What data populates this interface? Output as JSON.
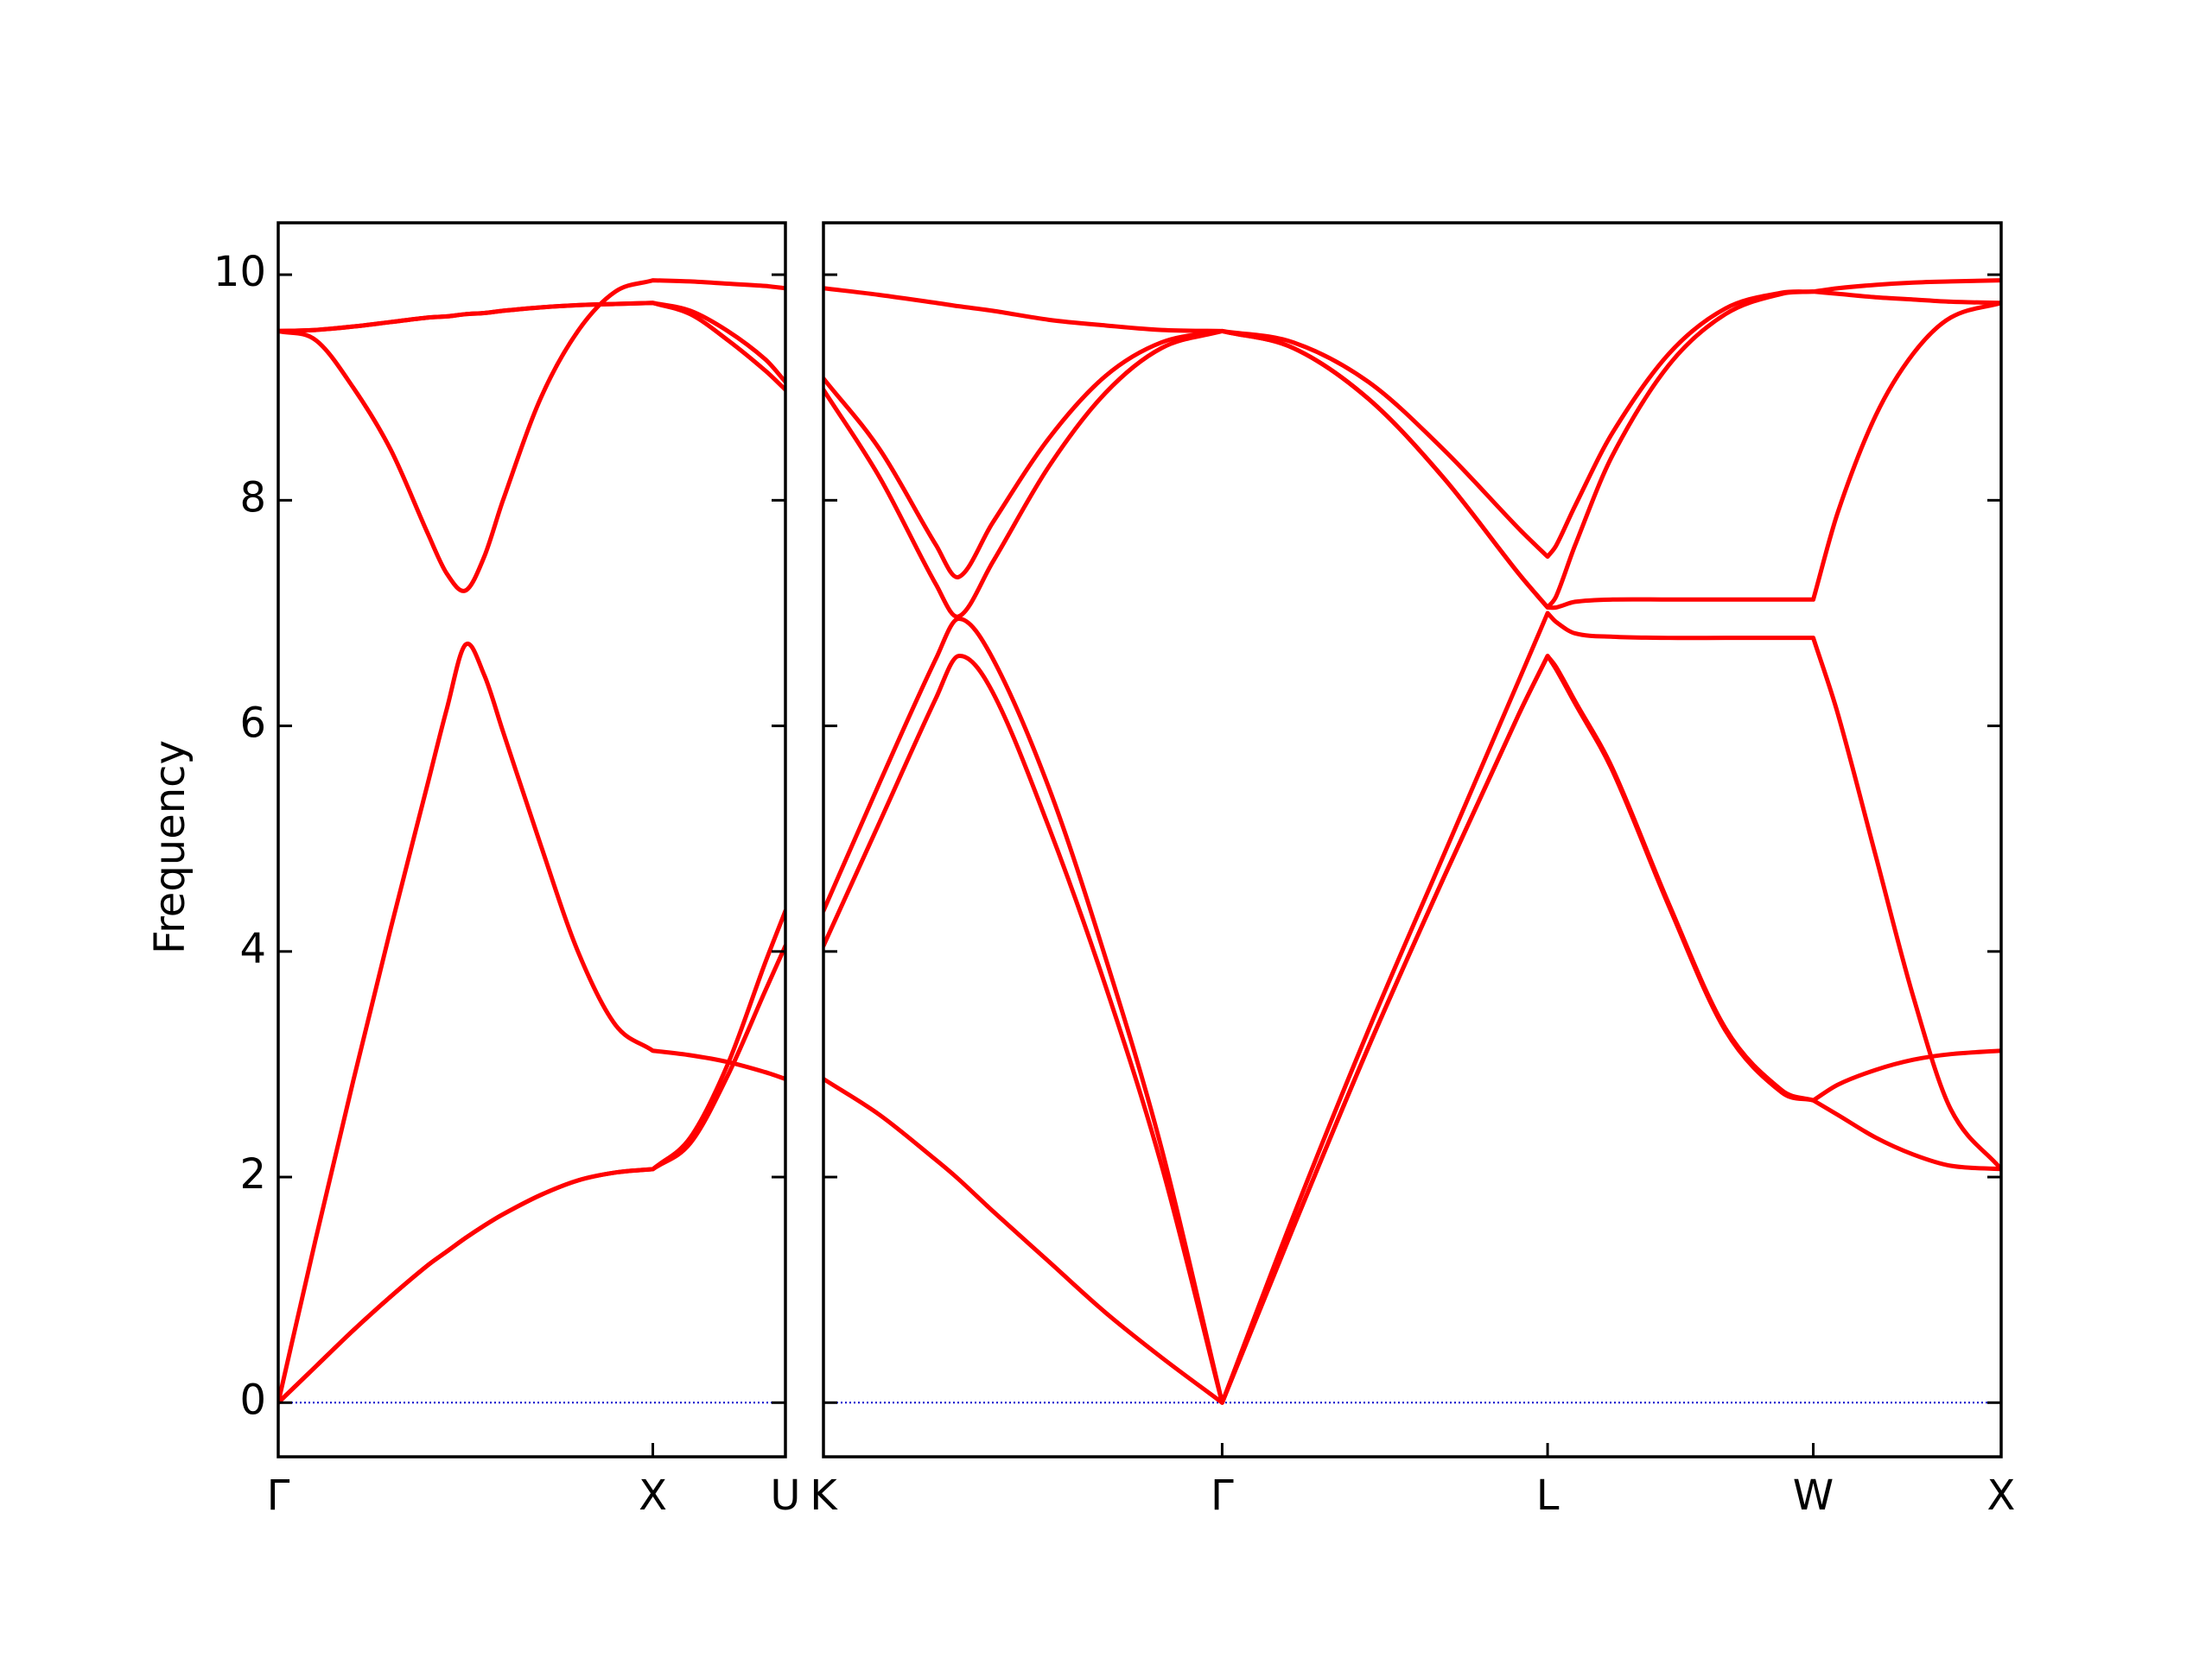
{
  "chart_data": [
    {
      "type": "line",
      "ylabel": "Frequency",
      "x": [
        0,
        0.1,
        0.2,
        0.3,
        0.4,
        0.45,
        0.5,
        0.55,
        0.6,
        0.7,
        0.8,
        0.9,
        1.0,
        1.1,
        1.2,
        1.3,
        1.354
      ],
      "series": [
        {
          "color": "#ff0000",
          "values": [
            0,
            0.32,
            0.64,
            0.94,
            1.22,
            1.34,
            1.46,
            1.57,
            1.67,
            1.84,
            1.97,
            2.04,
            2.07,
            2.3,
            2.9,
            3.65,
            4.05
          ]
        },
        {
          "color": "#ff0000",
          "values": [
            0,
            0.32,
            0.64,
            0.94,
            1.22,
            1.34,
            1.46,
            1.57,
            1.67,
            1.84,
            1.97,
            2.04,
            2.07,
            2.35,
            3.0,
            3.9,
            4.36
          ]
        },
        {
          "color": "#ff0000",
          "values": [
            0,
            1.45,
            2.85,
            4.2,
            5.5,
            6.15,
            6.72,
            6.45,
            5.95,
            4.95,
            4.0,
            3.35,
            3.12,
            3.08,
            3.02,
            2.93,
            2.87
          ]
        },
        {
          "color": "#ff0000",
          "values": [
            9.5,
            9.42,
            9.0,
            8.45,
            7.7,
            7.35,
            7.2,
            7.5,
            8.0,
            8.9,
            9.5,
            9.85,
            9.95,
            9.94,
            9.92,
            9.9,
            9.88
          ]
        },
        {
          "color": "#ff0000",
          "values": [
            9.5,
            9.51,
            9.54,
            9.58,
            9.62,
            9.63,
            9.65,
            9.66,
            9.68,
            9.71,
            9.73,
            9.74,
            9.75,
            9.68,
            9.5,
            9.25,
            9.05
          ]
        },
        {
          "color": "#ff0000",
          "values": [
            9.5,
            9.51,
            9.54,
            9.58,
            9.62,
            9.63,
            9.65,
            9.66,
            9.68,
            9.71,
            9.73,
            9.74,
            9.75,
            9.65,
            9.42,
            9.15,
            8.98
          ]
        }
      ],
      "xlim": [
        0,
        1.354
      ],
      "xticks": [
        {
          "value": 0,
          "label": "Γ"
        },
        {
          "value": 1.0,
          "label": "X"
        },
        {
          "value": 1.354,
          "label": "U"
        }
      ],
      "ylim": [
        -0.48,
        10.46
      ],
      "yticks": [
        0,
        2,
        4,
        6,
        8,
        10
      ],
      "ytick_labels": true,
      "hline": {
        "value": 0,
        "color": "#0000cc",
        "style": "dotted"
      }
    },
    {
      "type": "line",
      "x": [
        0,
        0.15,
        0.3,
        0.36,
        0.45,
        0.6,
        0.75,
        0.9,
        1.061,
        1.25,
        1.45,
        1.65,
        1.85,
        1.927,
        1.95,
        2.0,
        2.1,
        2.25,
        2.4,
        2.55,
        2.634,
        2.7,
        2.8,
        2.9,
        3.0,
        3.134
      ],
      "series": [
        {
          "color": "#ff0000",
          "values": [
            2.87,
            2.55,
            2.15,
            1.98,
            1.7,
            1.25,
            0.8,
            0.4,
            0,
            1.55,
            3.15,
            4.65,
            6.1,
            6.62,
            6.5,
            6.2,
            5.6,
            4.4,
            3.3,
            2.75,
            2.68,
            2.55,
            2.35,
            2.2,
            2.1,
            2.07
          ]
        },
        {
          "color": "#ff0000",
          "values": [
            4.05,
            5.15,
            6.25,
            6.62,
            6.3,
            5.1,
            3.7,
            2.1,
            0,
            1.55,
            3.15,
            4.65,
            6.1,
            6.62,
            6.52,
            6.22,
            5.62,
            4.42,
            3.32,
            2.77,
            2.68,
            2.82,
            2.95,
            3.04,
            3.09,
            3.12
          ]
        },
        {
          "color": "#ff0000",
          "values": [
            4.36,
            5.5,
            6.6,
            6.95,
            6.6,
            5.45,
            3.95,
            2.25,
            0,
            1.65,
            3.3,
            4.85,
            6.4,
            7.0,
            6.92,
            6.82,
            6.79,
            6.78,
            6.78,
            6.78,
            6.78,
            6.1,
            4.85,
            3.6,
            2.6,
            2.07
          ]
        },
        {
          "color": "#ff0000",
          "values": [
            8.98,
            8.2,
            7.25,
            6.97,
            7.45,
            8.3,
            8.95,
            9.35,
            9.5,
            9.35,
            8.9,
            8.2,
            7.35,
            7.05,
            7.15,
            7.6,
            8.4,
            9.2,
            9.65,
            9.83,
            9.85,
            9.83,
            9.8,
            9.78,
            9.76,
            9.75
          ]
        },
        {
          "color": "#ff0000",
          "values": [
            9.08,
            8.45,
            7.6,
            7.32,
            7.8,
            8.55,
            9.1,
            9.4,
            9.5,
            9.4,
            9.05,
            8.45,
            7.75,
            7.5,
            7.6,
            7.95,
            8.6,
            9.3,
            9.7,
            9.84,
            9.85,
            9.88,
            9.91,
            9.93,
            9.94,
            9.95
          ]
        },
        {
          "color": "#ff0000",
          "values": [
            9.88,
            9.82,
            9.75,
            9.72,
            9.68,
            9.6,
            9.55,
            9.51,
            9.5,
            9.35,
            8.9,
            8.2,
            7.35,
            7.05,
            7.05,
            7.1,
            7.12,
            7.12,
            7.12,
            7.12,
            7.12,
            7.9,
            8.75,
            9.3,
            9.62,
            9.75
          ]
        }
      ],
      "xlim": [
        0,
        3.134
      ],
      "xticks": [
        {
          "value": 0,
          "label": "K"
        },
        {
          "value": 1.061,
          "label": "Γ"
        },
        {
          "value": 1.927,
          "label": "L"
        },
        {
          "value": 2.634,
          "label": "W"
        },
        {
          "value": 3.134,
          "label": "X"
        }
      ],
      "ylim": [
        -0.48,
        10.46
      ],
      "yticks": [
        0,
        2,
        4,
        6,
        8,
        10
      ],
      "ytick_labels": false,
      "hline": {
        "value": 0,
        "color": "#0000cc",
        "style": "dotted"
      }
    }
  ]
}
